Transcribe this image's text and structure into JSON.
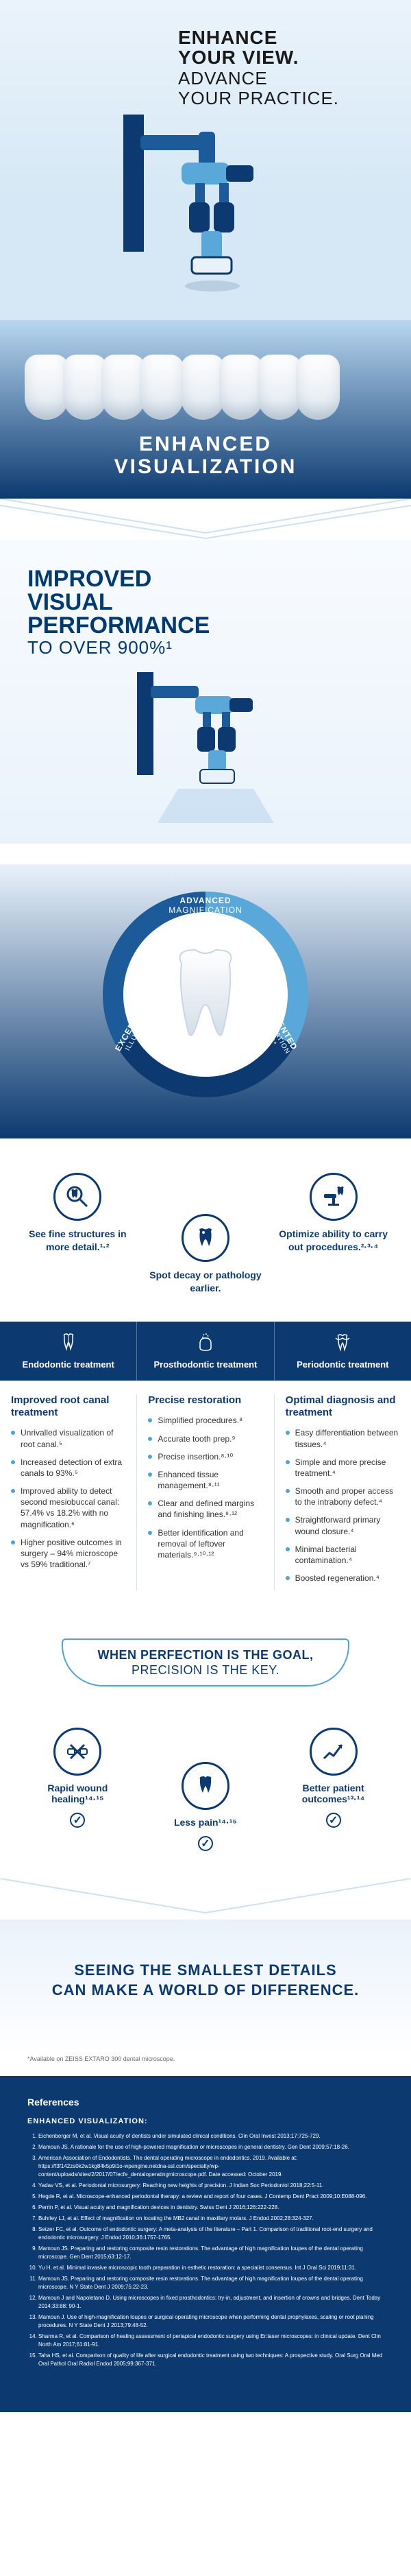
{
  "hero": {
    "headline_bold1": "ENHANCE",
    "headline_bold2": "YOUR VIEW.",
    "headline_light1": "ADVANCE",
    "headline_light2": "YOUR PRACTICE.",
    "banner_l1": "ENHANCED",
    "banner_l2": "VISUALIZATION"
  },
  "perf": {
    "l1": "IMPROVED",
    "l2": "VISUAL",
    "l3": "PERFORMANCE",
    "stat": "TO OVER 900%¹"
  },
  "ring": {
    "top": "ADVANCED",
    "top_sub": "MAGNIFICATION",
    "right": "AUGMENTED",
    "right_sub": "VISUALIZATION MODES*",
    "left": "EXCEPTIONAL",
    "left_sub": "ILLUMINATION"
  },
  "trio": {
    "a": "See fine structures in more detail.¹·²",
    "b": "Spot decay or pathology earlier.",
    "c": "Optimize ability to carry out procedures.²·³·⁴"
  },
  "treatments": {
    "endo": {
      "title": "Endodontic treatment",
      "subtitle": "Improved root canal treatment",
      "items": [
        "Unrivalled visualization of root canal.⁵",
        "Increased detection of extra canals to 93%.⁵",
        "Improved ability to detect second mesiobuccal canal: 57.4% vs 18.2% with no magnification.⁶",
        "Higher positive outcomes in surgery – 94% microscope vs 59% traditional.⁷"
      ]
    },
    "prosth": {
      "title": "Prosthodontic treatment",
      "subtitle": "Precise restoration",
      "items": [
        "Simplified procedures.⁸",
        "Accurate tooth prep.⁹",
        "Precise insertion.⁸·¹⁰",
        "Enhanced tissue management.⁸·¹¹",
        "Clear and defined margins and finishing lines.⁸·¹²",
        "Better identification and removal of leftover materials.⁹·¹⁰·¹²"
      ]
    },
    "perio": {
      "title": "Periodontic treatment",
      "subtitle": "Optimal diagnosis and treatment",
      "items": [
        "Easy differentiation between tissues.⁴",
        "Simple and more precise treatment.⁴",
        "Smooth and proper access to the intrabony defect.⁴",
        "Straightforward primary wound closure.⁴",
        "Minimal bacterial contamination.⁴",
        "Boosted regeneration.⁴"
      ]
    }
  },
  "banner": {
    "l1": "WHEN PERFECTION IS THE GOAL,",
    "l2": "PRECISION IS THE KEY."
  },
  "outcomes": {
    "a": "Rapid wound healing¹⁴·¹⁵",
    "b": "Less pain¹⁴·¹⁵",
    "c": "Better patient outcomes¹³·¹⁴"
  },
  "closing": {
    "l1": "SEEING THE SMALLEST DETAILS",
    "l2": "CAN MAKE A WORLD OF DIFFERENCE."
  },
  "footnote": "*Available on ZEISS EXTARO 300 dental microscope.",
  "refs": {
    "title": "References",
    "section": "ENHANCED VISUALIZATION:",
    "items": [
      "Eichenberger M, et al. Visual acuity of dentists under simulated clinical conditions. Clin Oral Invest 2013;17:725-729.",
      "Mamoun JS. A rationale for the use of high-powered magnification or microscopes in general dentistry. Gen Dent 2009;57:18-26.",
      "American Association of Endodontists. The dental operating microscope in endodontics. 2019. Available at: https://f3f142zs0k2w1kg84k5p9i1o-wpengine.netdna-ssl.com/specialty/wp-content/uploads/sites/2/2017/07/ecfe_dentaloperatingmicroscope.pdf. Date accessed: October 2019.",
      "Yadav VS, et al. Periodontal microsurgery: Reaching new heights of precision. J Indian Soc Periodontol 2018;22:5-11.",
      "Hegde R, et al. Microscope-enhanced periodontal therapy: a review and report of four cases. J Contemp Dent Pract 2009;10:E088-096.",
      "Perrin P, et al. Visual acuity and magnification devices in dentistry. Swiss Dent J 2016;126:222-228.",
      "Buhrley LJ, et al. Effect of magnification on locating the MB2 canal in maxillary molars. J Endod 2002;28:324-327.",
      "Setzer FC, et al. Outcome of endodontic surgery: A meta-analysis of the literature – Part 1. Comparison of traditional root-end surgery and endodontic microsurgery. J Endod 2010;36:1757-1765.",
      "Mamoun JS. Preparing and restoring composite resin restorations. The advantage of high magnification loupes of the dental operating microscope. Gen Dent 2015;63:12-17.",
      "Yu H, et al. Minimal invasive microscopic tooth preparation in esthetic restoration: a specialist consensus. Int J Oral Sci 2019;11:31.",
      "Mamoun JS. Preparing and restoring composite resin restorations. The advantage of high magnification loupes of the dental operating microscope. N Y State Dent J 2009;75:22-23.",
      "Mamoun J and Napoletano D. Using microscopes in fixed prosthodontics: try-in, adjustment, and insertion of crowns and bridges. Dent Today 2014;33:88: 90-1.",
      "Mamoun J. Use of high-magnification loupes or surgical operating microscope when performing dental prophylaxes, scaling or root planing procedures. N Y State Dent J 2013;79:48-52.",
      "Sharma R, et al. Comparison of healing assessment of periapical endodontic surgery using Er:laser microscopes: in clinical update. Dent Clin North Am 2017;61:81-91.",
      "Taha HS, et al. Comparison of quality of life after surgical endodontic treatment using two techniques: A prospective study. Oral Surg Oral Med Oral Pathol Oral Radiol Endod 2005;99:367-371."
    ]
  },
  "colors": {
    "navy": "#0c3a70",
    "blue": "#1c5a9a",
    "sky": "#5aa7d9",
    "lightblue": "#e9f2fb"
  }
}
